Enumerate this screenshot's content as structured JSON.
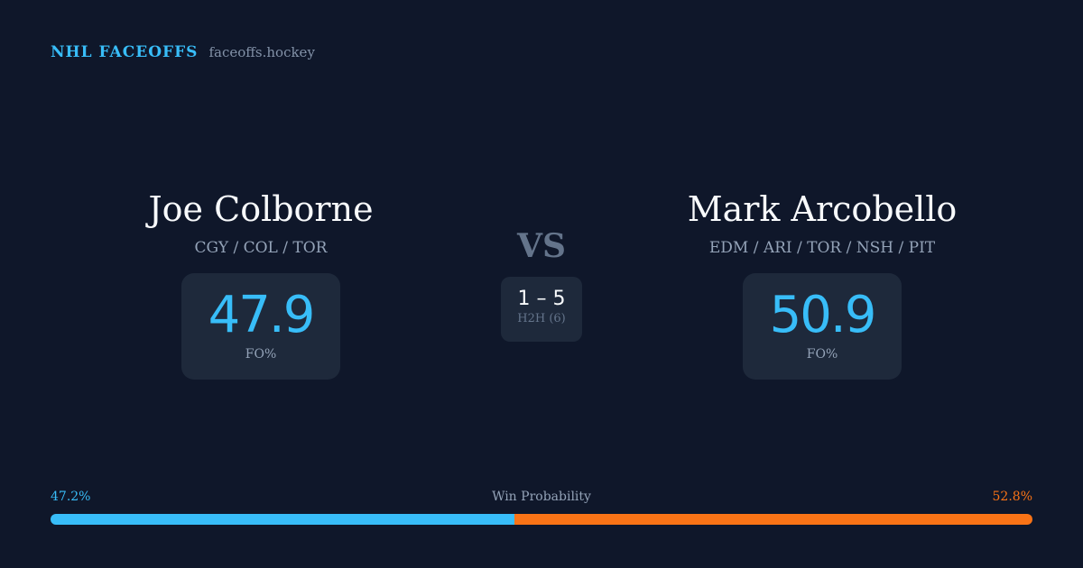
{
  "brand": {
    "title": "NHL FACEOFFS",
    "url": "faceoffs.hockey"
  },
  "player1": {
    "name": "Joe Colborne",
    "teams": "CGY / COL / TOR",
    "fo_pct": "47.9",
    "fo_label": "FO%"
  },
  "player2": {
    "name": "Mark Arcobello",
    "teams": "EDM / ARI / TOR / NSH / PIT",
    "fo_pct": "50.9",
    "fo_label": "FO%"
  },
  "vs": "VS",
  "h2h": {
    "score": "1 – 5",
    "label": "H2H (6)"
  },
  "win_probability": {
    "label": "Win Probability",
    "p1": "47.2%",
    "p2": "52.8%",
    "p1_value": 47.2,
    "p1_color": "#38bdf8",
    "p2_color": "#f97316"
  }
}
